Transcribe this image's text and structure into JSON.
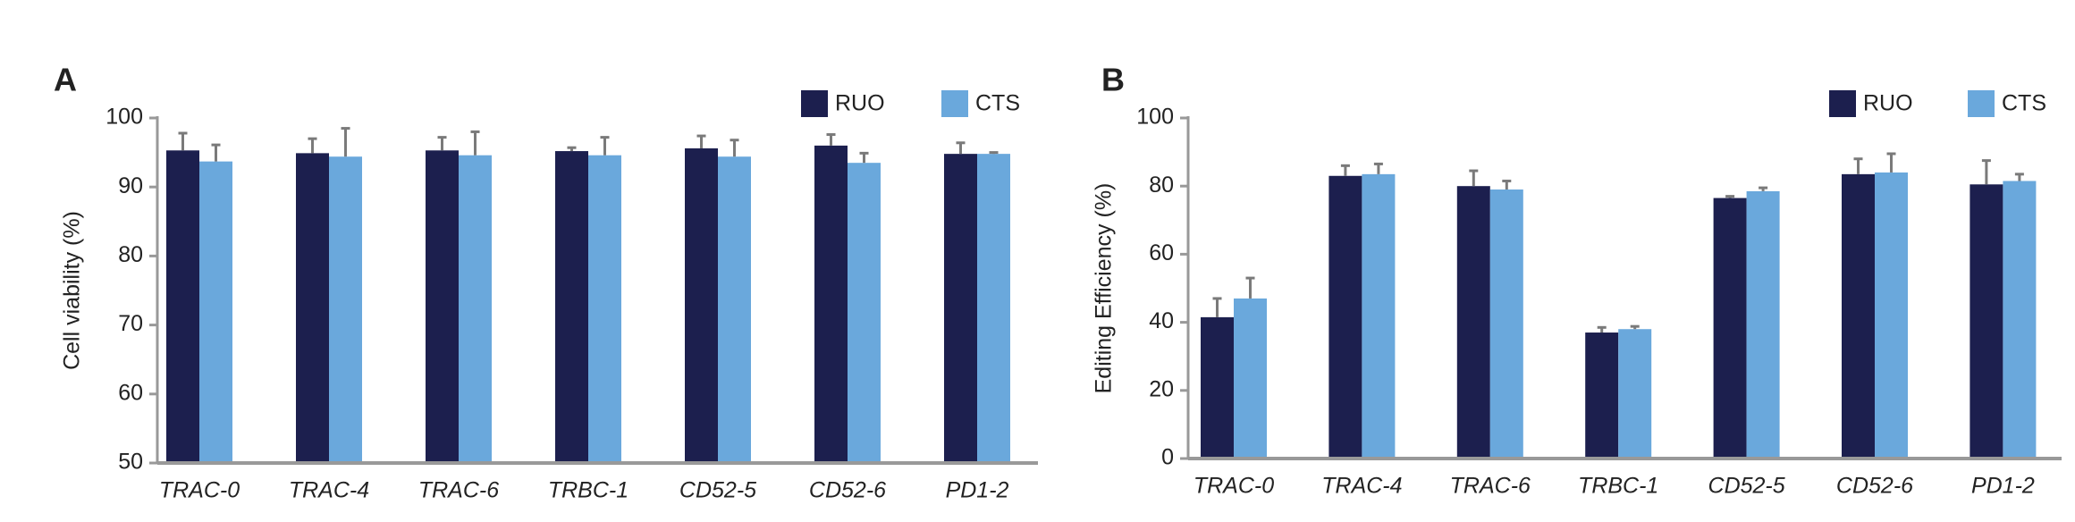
{
  "chart_data": [
    {
      "type": "bar",
      "panel_label": "A",
      "y_label": "Cell viability (%)",
      "categories": [
        "TRAC-0",
        "TRAC-4",
        "TRAC-6",
        "TRBC-1",
        "CD52-5",
        "CD52-6",
        "PD1-2"
      ],
      "series": [
        {
          "name": "RUO",
          "color": "#1c1f4e",
          "values": [
            95.3,
            94.9,
            95.3,
            95.2,
            95.6,
            96.0,
            94.8
          ],
          "errors": [
            2.5,
            2.1,
            1.9,
            0.5,
            1.8,
            1.6,
            1.6
          ]
        },
        {
          "name": "CTS",
          "color": "#6aa8dc",
          "values": [
            93.7,
            94.4,
            94.6,
            94.6,
            94.4,
            93.5,
            94.8
          ],
          "errors": [
            2.4,
            4.1,
            3.4,
            2.6,
            2.4,
            1.4,
            0.2
          ]
        }
      ],
      "ylim": [
        50,
        100
      ],
      "yticks": [
        50,
        60,
        70,
        80,
        90,
        100
      ],
      "legend": "top-right",
      "grid": false
    },
    {
      "type": "bar",
      "panel_label": "B",
      "y_label": "Editing Efficiency (%)",
      "categories": [
        "TRAC-0",
        "TRAC-4",
        "TRAC-6",
        "TRBC-1",
        "CD52-5",
        "CD52-6",
        "PD1-2"
      ],
      "series": [
        {
          "name": "RUO",
          "color": "#1c1f4e",
          "values": [
            41.5,
            83,
            80,
            37,
            76.5,
            83.5,
            80.5
          ],
          "errors": [
            5.5,
            3,
            4.5,
            1.5,
            0.5,
            4.5,
            7
          ]
        },
        {
          "name": "CTS",
          "color": "#6aa8dc",
          "values": [
            47,
            83.5,
            79,
            38,
            78.5,
            84,
            81.5
          ],
          "errors": [
            6,
            3,
            2.5,
            0.8,
            1,
            5.5,
            2
          ]
        }
      ],
      "ylim": [
        0,
        100
      ],
      "yticks": [
        0,
        20,
        40,
        60,
        80,
        100
      ],
      "legend": "top-right",
      "grid": false
    }
  ]
}
